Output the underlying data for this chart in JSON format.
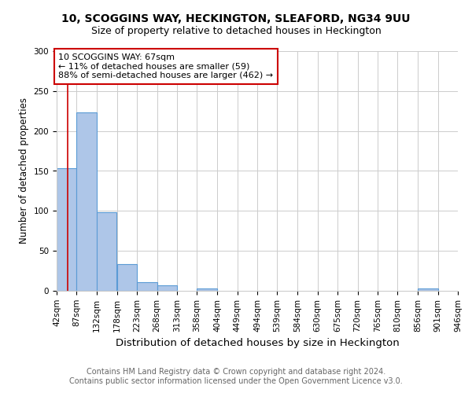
{
  "title1": "10, SCOGGINS WAY, HECKINGTON, SLEAFORD, NG34 9UU",
  "title2": "Size of property relative to detached houses in Heckington",
  "xlabel": "Distribution of detached houses by size in Heckington",
  "ylabel": "Number of detached properties",
  "footnote1": "Contains HM Land Registry data © Crown copyright and database right 2024.",
  "footnote2": "Contains public sector information licensed under the Open Government Licence v3.0.",
  "annotation_line1": "10 SCOGGINS WAY: 67sqm",
  "annotation_line2": "← 11% of detached houses are smaller (59)",
  "annotation_line3": "88% of semi-detached houses are larger (462) →",
  "bin_edges": [
    42,
    87,
    132,
    178,
    223,
    268,
    313,
    358,
    404,
    449,
    494,
    539,
    584,
    630,
    675,
    720,
    765,
    810,
    856,
    901,
    946
  ],
  "bar_heights": [
    153,
    223,
    98,
    33,
    11,
    7,
    0,
    3,
    0,
    0,
    0,
    0,
    0,
    0,
    0,
    0,
    0,
    0,
    3,
    0
  ],
  "bar_color": "#aec6e8",
  "bar_edgecolor": "#5b9bd5",
  "red_line_x": 67,
  "red_line_color": "#cc0000",
  "annotation_box_color": "#ffffff",
  "annotation_box_edgecolor": "#cc0000",
  "ylim": [
    0,
    300
  ],
  "yticks": [
    0,
    50,
    100,
    150,
    200,
    250,
    300
  ],
  "background_color": "#ffffff",
  "grid_color": "#cccccc",
  "title1_fontsize": 10,
  "title2_fontsize": 9,
  "xlabel_fontsize": 9.5,
  "ylabel_fontsize": 8.5,
  "tick_fontsize": 7.5,
  "annotation_fontsize": 8,
  "footnote_fontsize": 7
}
